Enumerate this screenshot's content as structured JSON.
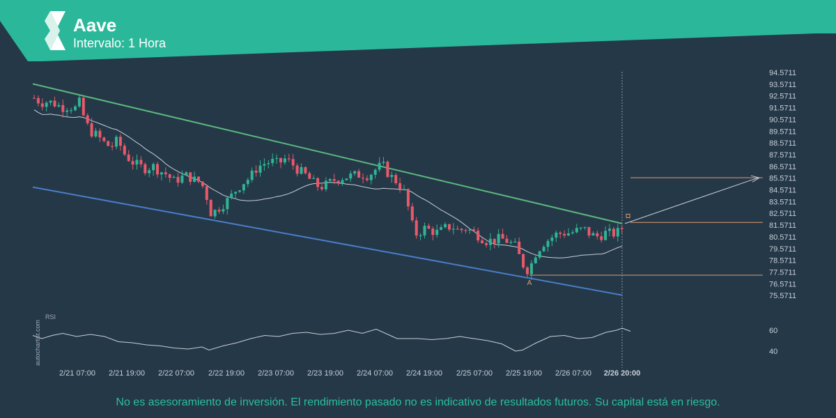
{
  "header": {
    "asset": "Aave",
    "interval": "Intervalo: 1 Hora",
    "logo_icon": "autochartist-logo-icon"
  },
  "watermark": "autochartist.com",
  "disclaimer": "No es asesoramiento de inversión. El rendimiento pasado no es indicativo de resultados futuros. Su capital está en riesgo.",
  "colors": {
    "header_bg": "#2bb89a",
    "background": "#253848",
    "bull_candle": "#2fb594",
    "bear_candle": "#e8596a",
    "resistance_line": "#5cb87f",
    "support_line": "#4a7ec8",
    "target_line": "#e89a6a",
    "ma_line": "#c8d0d8"
  },
  "chart_data": {
    "type": "candlestick",
    "price_axis": {
      "ticks": [
        "94.5711",
        "93.5711",
        "92.5711",
        "91.5711",
        "90.5711",
        "89.5711",
        "88.5711",
        "87.5711",
        "86.5711",
        "85.5711",
        "84.5711",
        "83.5711",
        "82.5711",
        "81.5711",
        "80.5711",
        "79.5711",
        "78.5711",
        "77.5711",
        "76.5711",
        "75.5711"
      ],
      "range": [
        75.3,
        94.8
      ]
    },
    "time_axis": {
      "ticks": [
        "2/21 07:00",
        "2/21 19:00",
        "2/22 07:00",
        "2/22 19:00",
        "2/23 07:00",
        "2/23 19:00",
        "2/24 07:00",
        "2/24 19:00",
        "2/25 07:00",
        "2/25 19:00",
        "2/26 07:00"
      ],
      "current": "2/26 20:00"
    },
    "rsi": {
      "label": "RSI",
      "ticks": [
        "60",
        "40"
      ],
      "range": [
        35,
        70
      ]
    },
    "pattern_point_label": "A",
    "resistance": {
      "start": 93.6,
      "end": 81.7
    },
    "support": {
      "start": 84.8,
      "end": 75.6
    },
    "levels": {
      "target": 85.6,
      "breakout": 81.8,
      "pattern_low": 77.3
    }
  }
}
